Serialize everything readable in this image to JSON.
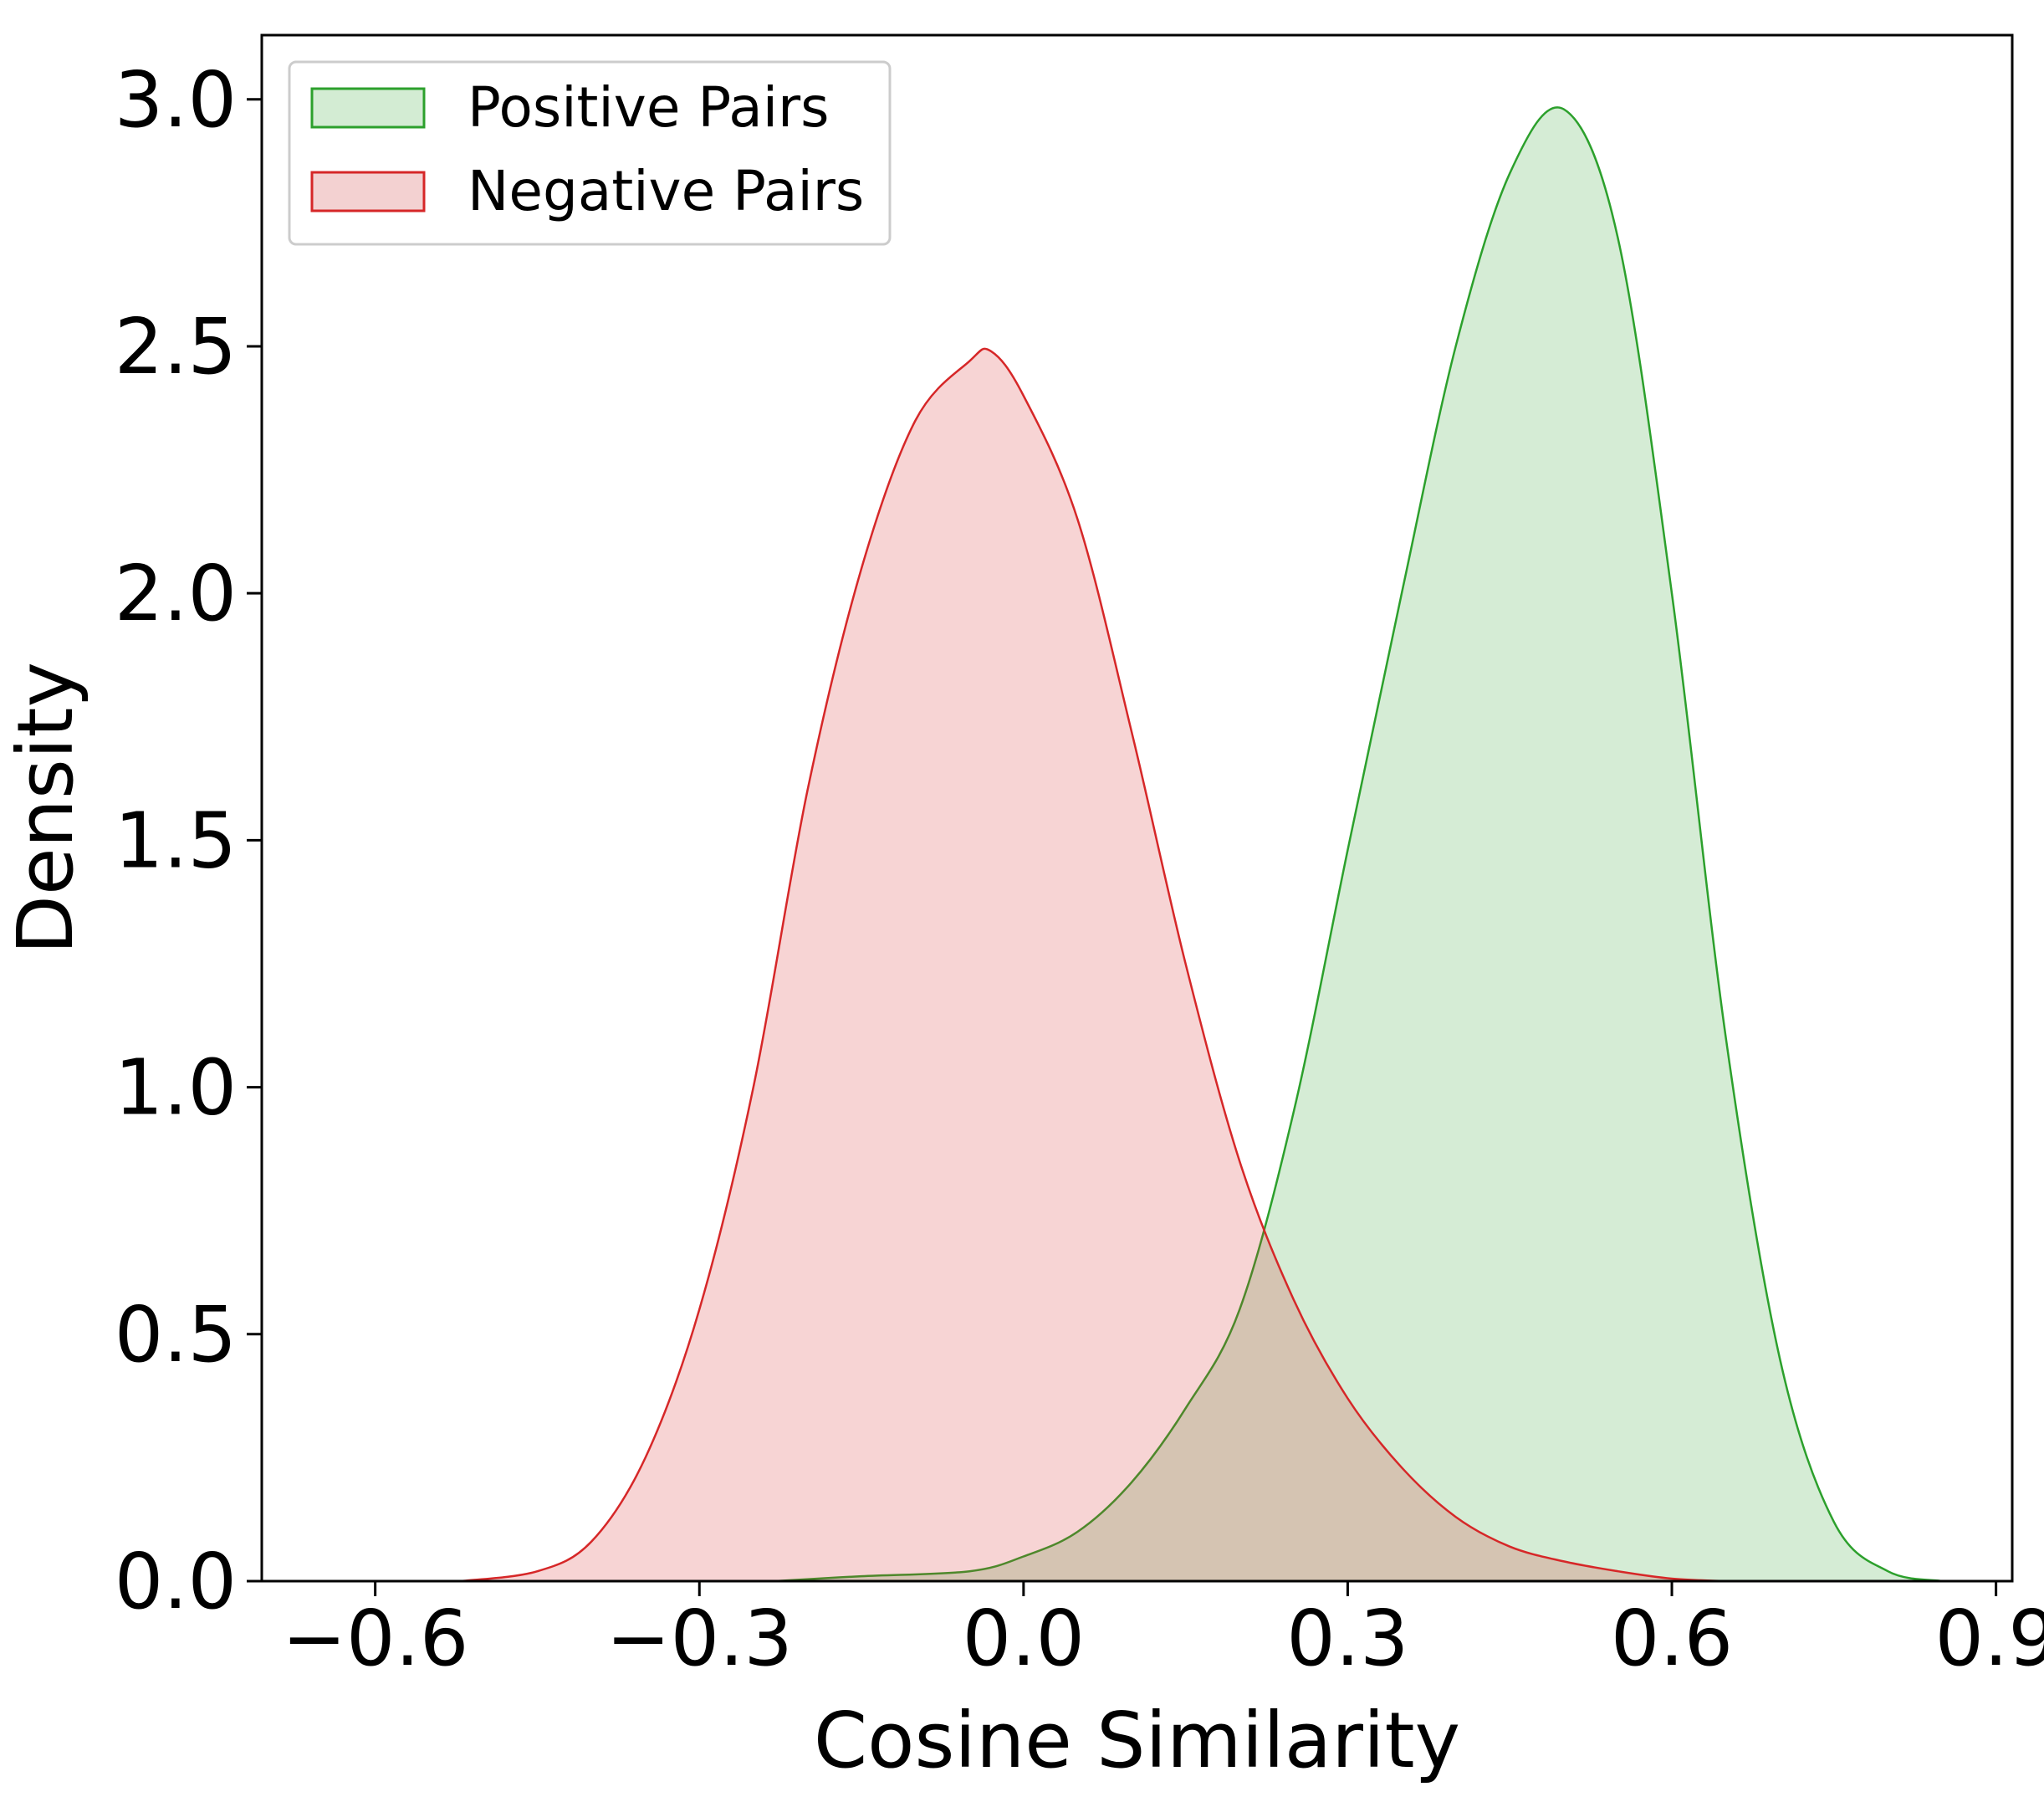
{
  "chart_data": {
    "type": "area",
    "xlabel": "Cosine Similarity",
    "ylabel": "Density",
    "xlim": [
      -0.705,
      0.915
    ],
    "ylim": [
      0.0,
      3.13
    ],
    "xticks": [
      -0.6,
      -0.3,
      0.0,
      0.3,
      0.6,
      0.9
    ],
    "xtick_labels": [
      "−0.6",
      "−0.3",
      "0.0",
      "0.3",
      "0.6",
      "0.9"
    ],
    "yticks": [
      0.0,
      0.5,
      1.0,
      1.5,
      2.0,
      2.5,
      3.0
    ],
    "ytick_labels": [
      "0.0",
      "0.5",
      "1.0",
      "1.5",
      "2.0",
      "2.5",
      "3.0"
    ],
    "grid": false,
    "legend_position": "top-left",
    "series": [
      {
        "name": "Positive Pairs",
        "color": "#2ca02c",
        "fill": "#d3ecd3",
        "x": [
          -0.23,
          -0.15,
          -0.05,
          0.0,
          0.05,
          0.1,
          0.15,
          0.2,
          0.25,
          0.3,
          0.35,
          0.4,
          0.45,
          0.5,
          0.55,
          0.6,
          0.65,
          0.7,
          0.75,
          0.8,
          0.85
        ],
        "y": [
          0.0,
          0.01,
          0.02,
          0.05,
          0.1,
          0.2,
          0.35,
          0.55,
          0.95,
          1.48,
          2.0,
          2.5,
          2.85,
          2.98,
          2.72,
          2.0,
          1.1,
          0.45,
          0.12,
          0.02,
          0.0
        ]
      },
      {
        "name": "Negative Pairs",
        "color": "#d62728",
        "fill": "#f3d1d1",
        "x": [
          -0.52,
          -0.45,
          -0.4,
          -0.35,
          -0.3,
          -0.25,
          -0.2,
          -0.15,
          -0.1,
          -0.05,
          -0.03,
          0.0,
          0.05,
          0.1,
          0.15,
          0.2,
          0.25,
          0.3,
          0.35,
          0.4,
          0.45,
          0.5,
          0.55,
          0.6,
          0.65
        ],
        "y": [
          0.0,
          0.02,
          0.08,
          0.25,
          0.55,
          1.0,
          1.6,
          2.05,
          2.35,
          2.47,
          2.49,
          2.4,
          2.15,
          1.72,
          1.25,
          0.85,
          0.57,
          0.37,
          0.23,
          0.13,
          0.07,
          0.04,
          0.02,
          0.005,
          0.0
        ]
      }
    ]
  }
}
